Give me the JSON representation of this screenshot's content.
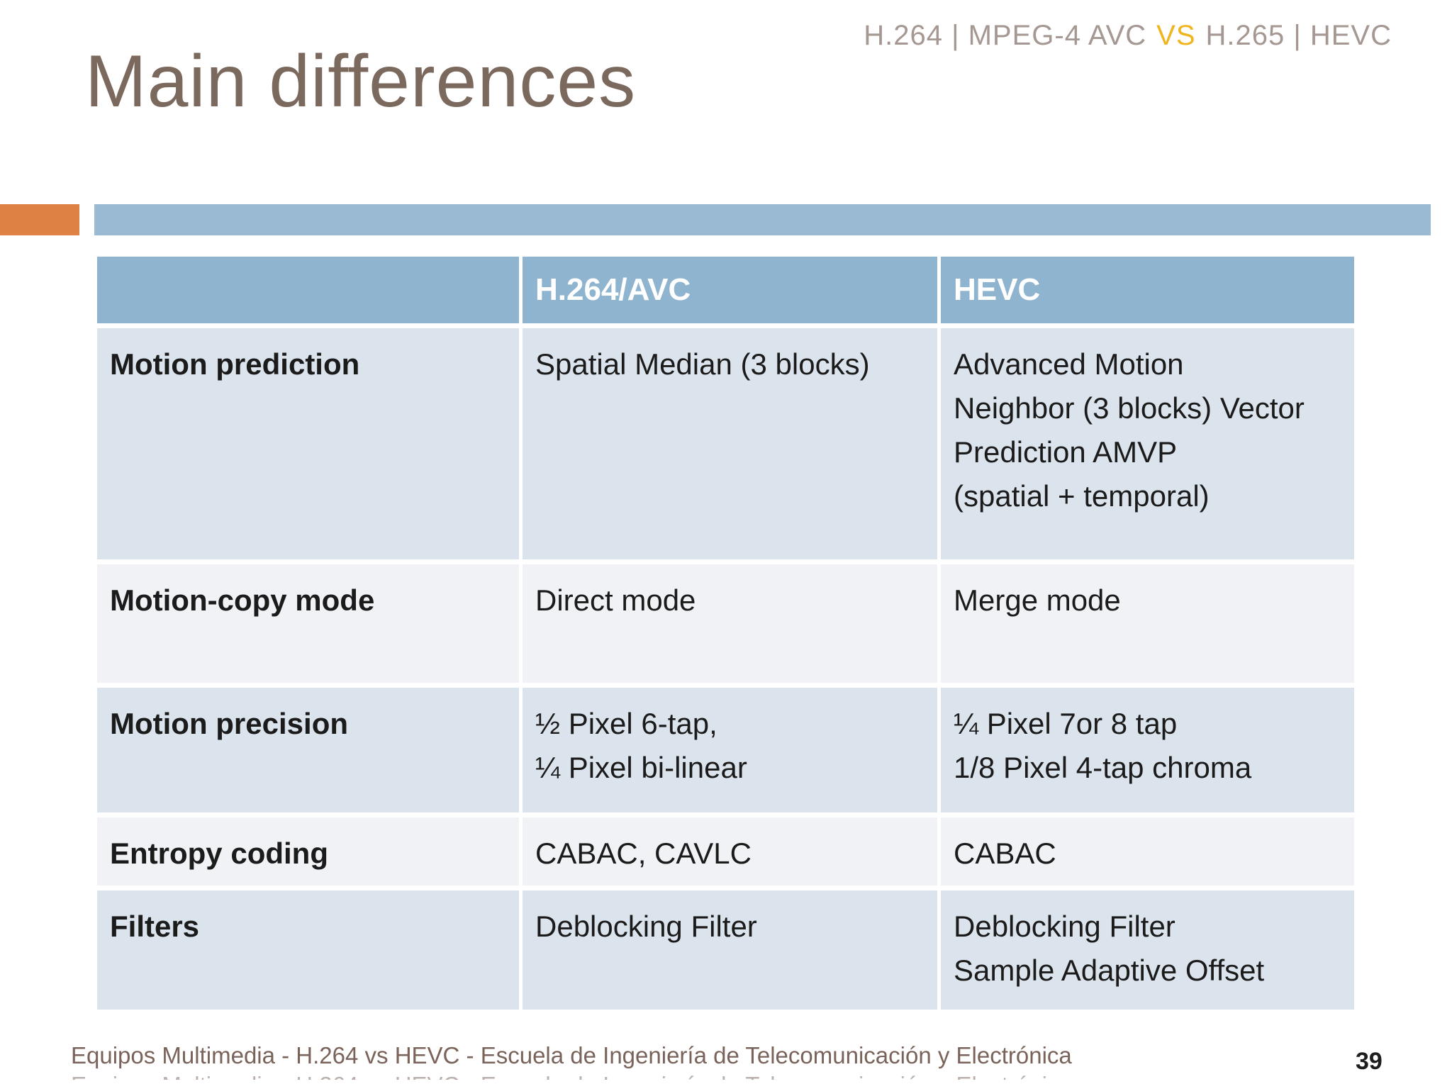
{
  "header": {
    "left_codec": "H.264 | MPEG-4 AVC",
    "vs": "VS",
    "right_codec": "H.265 | HEVC",
    "text_color": "#a59792",
    "vs_color": "#f0b41c"
  },
  "title": {
    "text": "Main differences",
    "color": "#7b695e"
  },
  "accent_bar": {
    "orange_color": "#dd8145",
    "blue_color": "#9ab9d3"
  },
  "table": {
    "header_bg": "#8fb4d0",
    "header_text_color": "#ffffff",
    "row_dark_bg": "#dbe3ec",
    "row_light_bg": "#f0f2f5",
    "body_text_color": "#1b1b1b",
    "columns": [
      "",
      "H.264/AVC",
      "HEVC"
    ],
    "rows": [
      {
        "feature": "Motion prediction",
        "h264": "Spatial Median (3 blocks)",
        "hevc": "Advanced Motion\nNeighbor (3 blocks) Vector\nPrediction AMVP\n(spatial + temporal)"
      },
      {
        "feature": "Motion-copy mode",
        "h264": "Direct mode",
        "hevc": "Merge mode"
      },
      {
        "feature": "Motion precision",
        "h264": "½ Pixel 6-tap,\n¼ Pixel bi-linear",
        "hevc": "¼ Pixel 7or 8 tap\n1/8 Pixel 4-tap chroma"
      },
      {
        "feature": "Entropy coding",
        "h264": "CABAC, CAVLC",
        "hevc": "CABAC"
      },
      {
        "feature": "Filters",
        "h264": "Deblocking Filter",
        "hevc": "Deblocking Filter\nSample Adaptive Offset"
      }
    ]
  },
  "footer": {
    "text": "Equipos Multimedia - H.264 vs HEVC - Escuela de Ingeniería de Telecomunicación y Electrónica",
    "text_color": "#7a635a",
    "page_number": "39"
  }
}
